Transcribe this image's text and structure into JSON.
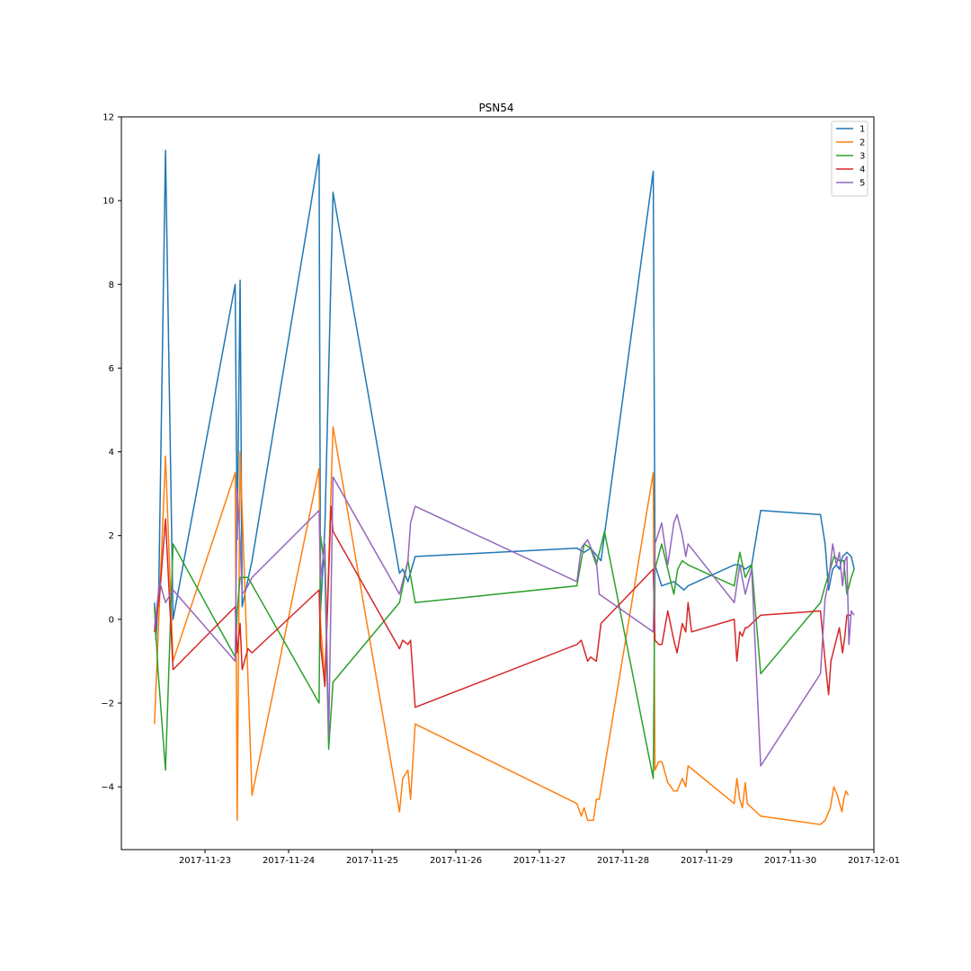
{
  "chart_data": {
    "type": "line",
    "title": "PSN54",
    "xlabel": "",
    "ylabel": "",
    "x_axis": "date",
    "xlim": [
      "2017-11-22T00:00",
      "2017-12-01T00:00"
    ],
    "ylim": [
      -5.5,
      12
    ],
    "x_ticks": [
      "2017-11-23",
      "2017-11-24",
      "2017-11-25",
      "2017-11-26",
      "2017-11-27",
      "2017-11-28",
      "2017-11-29",
      "2017-11-30",
      "2017-12-01"
    ],
    "y_ticks": [
      -4,
      -2,
      0,
      2,
      4,
      6,
      8,
      10,
      12
    ],
    "legend_position": "top-right",
    "grid": false,
    "series": [
      {
        "name": "1",
        "color": "#1f77b4",
        "points": [
          [
            "2017-11-22 09:30",
            0.4
          ],
          [
            "2017-11-22 09:55",
            -0.5
          ],
          [
            "2017-11-22 10:45",
            0.8
          ],
          [
            "2017-11-22 12:40",
            11.2
          ],
          [
            "2017-11-22 14:50",
            0.0
          ],
          [
            "2017-11-23 08:40",
            8.0
          ],
          [
            "2017-11-23 09:15",
            1.9
          ],
          [
            "2017-11-23 10:05",
            8.1
          ],
          [
            "2017-11-23 10:40",
            0.3
          ],
          [
            "2017-11-23 13:30",
            1.4
          ],
          [
            "2017-11-24 08:45",
            11.1
          ],
          [
            "2017-11-24 09:10",
            0.2
          ],
          [
            "2017-11-24 10:25",
            2.2
          ],
          [
            "2017-11-24 12:45",
            10.2
          ],
          [
            "2017-11-25 07:50",
            1.1
          ],
          [
            "2017-11-25 08:45",
            1.2
          ],
          [
            "2017-11-25 10:15",
            0.9
          ],
          [
            "2017-11-25 12:20",
            1.5
          ],
          [
            "2017-11-27 10:45",
            1.7
          ],
          [
            "2017-11-27 12:50",
            1.6
          ],
          [
            "2017-11-27 14:40",
            1.7
          ],
          [
            "2017-11-27 17:40",
            1.4
          ],
          [
            "2017-11-28 08:40",
            10.7
          ],
          [
            "2017-11-28 09:10",
            1.3
          ],
          [
            "2017-11-28 11:05",
            0.8
          ],
          [
            "2017-11-28 14:35",
            0.9
          ],
          [
            "2017-11-28 17:30",
            0.7
          ],
          [
            "2017-11-28 18:40",
            0.8
          ],
          [
            "2017-11-29 07:55",
            1.3
          ],
          [
            "2017-11-29 09:30",
            1.3
          ],
          [
            "2017-11-29 11:05",
            1.2
          ],
          [
            "2017-11-29 12:55",
            1.3
          ],
          [
            "2017-11-29 15:30",
            2.6
          ],
          [
            "2017-11-30 08:40",
            2.5
          ],
          [
            "2017-11-30 10:00",
            1.8
          ],
          [
            "2017-11-30 11:00",
            0.7
          ],
          [
            "2017-11-30 12:10",
            1.2
          ],
          [
            "2017-11-30 13:15",
            1.3
          ],
          [
            "2017-11-30 14:05",
            1.2
          ],
          [
            "2017-11-30 15:00",
            1.5
          ],
          [
            "2017-11-30 16:15",
            1.6
          ],
          [
            "2017-11-30 17:30",
            1.5
          ],
          [
            "2017-11-30 18:20",
            1.2
          ]
        ]
      },
      {
        "name": "2",
        "color": "#ff7f0e",
        "points": [
          [
            "2017-11-22 09:30",
            -2.5
          ],
          [
            "2017-11-22 12:40",
            3.9
          ],
          [
            "2017-11-22 14:50",
            -1.0
          ],
          [
            "2017-11-23 08:40",
            3.5
          ],
          [
            "2017-11-23 09:15",
            -4.8
          ],
          [
            "2017-11-23 10:05",
            4.0
          ],
          [
            "2017-11-23 13:30",
            -4.2
          ],
          [
            "2017-11-24 08:45",
            3.6
          ],
          [
            "2017-11-24 09:10",
            -0.1
          ],
          [
            "2017-11-24 10:25",
            -1.5
          ],
          [
            "2017-11-24 12:45",
            4.6
          ],
          [
            "2017-11-25 07:50",
            -4.6
          ],
          [
            "2017-11-25 08:45",
            -3.8
          ],
          [
            "2017-11-25 10:15",
            -3.6
          ],
          [
            "2017-11-25 11:00",
            -4.3
          ],
          [
            "2017-11-25 12:20",
            -2.5
          ],
          [
            "2017-11-27 10:45",
            -4.4
          ],
          [
            "2017-11-27 12:00",
            -4.7
          ],
          [
            "2017-11-27 12:50",
            -4.5
          ],
          [
            "2017-11-27 13:50",
            -4.8
          ],
          [
            "2017-11-27 15:30",
            -4.8
          ],
          [
            "2017-11-27 16:20",
            -4.3
          ],
          [
            "2017-11-27 17:10",
            -4.3
          ],
          [
            "2017-11-28 08:40",
            3.5
          ],
          [
            "2017-11-28 09:10",
            -3.6
          ],
          [
            "2017-11-28 10:15",
            -3.4
          ],
          [
            "2017-11-28 11:10",
            -3.4
          ],
          [
            "2017-11-28 12:50",
            -3.9
          ],
          [
            "2017-11-28 14:35",
            -4.1
          ],
          [
            "2017-11-28 15:30",
            -4.1
          ],
          [
            "2017-11-28 17:00",
            -3.8
          ],
          [
            "2017-11-28 18:00",
            -4.0
          ],
          [
            "2017-11-28 18:40",
            -3.5
          ],
          [
            "2017-11-29 07:55",
            -4.4
          ],
          [
            "2017-11-29 08:40",
            -3.8
          ],
          [
            "2017-11-29 09:30",
            -4.3
          ],
          [
            "2017-11-29 10:15",
            -4.5
          ],
          [
            "2017-11-29 11:05",
            -3.9
          ],
          [
            "2017-11-29 11:40",
            -4.4
          ],
          [
            "2017-11-29 15:30",
            -4.7
          ],
          [
            "2017-11-30 08:40",
            -4.9
          ],
          [
            "2017-11-30 10:00",
            -4.8
          ],
          [
            "2017-11-30 11:30",
            -4.5
          ],
          [
            "2017-11-30 12:30",
            -4.0
          ],
          [
            "2017-11-30 13:30",
            -4.2
          ],
          [
            "2017-11-30 14:50",
            -4.6
          ],
          [
            "2017-11-30 15:20",
            -4.3
          ],
          [
            "2017-11-30 16:00",
            -4.1
          ],
          [
            "2017-11-30 16:40",
            -4.2
          ]
        ]
      },
      {
        "name": "3",
        "color": "#2ca02c",
        "points": [
          [
            "2017-11-22 09:30",
            0.3
          ],
          [
            "2017-11-22 10:30",
            -1.2
          ],
          [
            "2017-11-22 12:40",
            -3.6
          ],
          [
            "2017-11-22 14:50",
            1.8
          ],
          [
            "2017-11-23 08:40",
            -0.9
          ],
          [
            "2017-11-23 09:15",
            0.2
          ],
          [
            "2017-11-23 10:05",
            1.0
          ],
          [
            "2017-11-23 11:30",
            1.0
          ],
          [
            "2017-11-23 12:20",
            1.0
          ],
          [
            "2017-11-24 08:45",
            -2.0
          ],
          [
            "2017-11-24 09:10",
            2.0
          ],
          [
            "2017-11-24 10:25",
            1.2
          ],
          [
            "2017-11-24 11:30",
            -3.1
          ],
          [
            "2017-11-24 12:45",
            -1.5
          ],
          [
            "2017-11-25 07:50",
            0.4
          ],
          [
            "2017-11-25 10:15",
            1.4
          ],
          [
            "2017-11-25 12:20",
            0.4
          ],
          [
            "2017-11-27 10:45",
            0.8
          ],
          [
            "2017-11-27 12:50",
            1.8
          ],
          [
            "2017-11-27 14:40",
            1.7
          ],
          [
            "2017-11-27 16:20",
            1.3
          ],
          [
            "2017-11-27 18:40",
            2.1
          ],
          [
            "2017-11-28 08:40",
            -3.8
          ],
          [
            "2017-11-28 09:10",
            1.2
          ],
          [
            "2017-11-28 11:05",
            1.8
          ],
          [
            "2017-11-28 14:35",
            0.6
          ],
          [
            "2017-11-28 15:40",
            1.2
          ],
          [
            "2017-11-28 17:00",
            1.4
          ],
          [
            "2017-11-28 18:40",
            1.3
          ],
          [
            "2017-11-29 07:55",
            0.8
          ],
          [
            "2017-11-29 09:30",
            1.6
          ],
          [
            "2017-11-29 11:05",
            1.0
          ],
          [
            "2017-11-29 12:55",
            1.3
          ],
          [
            "2017-11-29 15:30",
            -1.3
          ],
          [
            "2017-11-30 08:40",
            0.4
          ],
          [
            "2017-11-30 10:00",
            0.8
          ],
          [
            "2017-11-30 11:30",
            1.2
          ],
          [
            "2017-11-30 12:30",
            1.5
          ],
          [
            "2017-11-30 14:05",
            1.4
          ],
          [
            "2017-11-30 15:20",
            1.4
          ],
          [
            "2017-11-30 16:15",
            0.6
          ],
          [
            "2017-11-30 17:30",
            1.0
          ],
          [
            "2017-11-30 18:20",
            1.2
          ]
        ]
      },
      {
        "name": "4",
        "color": "#d62728",
        "points": [
          [
            "2017-11-22 09:30",
            -0.3
          ],
          [
            "2017-11-22 11:00",
            0.6
          ],
          [
            "2017-11-22 12:40",
            2.4
          ],
          [
            "2017-11-22 14:50",
            -1.2
          ],
          [
            "2017-11-23 08:40",
            0.3
          ],
          [
            "2017-11-23 09:15",
            -0.8
          ],
          [
            "2017-11-23 10:05",
            -0.1
          ],
          [
            "2017-11-23 10:40",
            -1.2
          ],
          [
            "2017-11-23 12:20",
            -0.7
          ],
          [
            "2017-11-23 13:30",
            -0.8
          ],
          [
            "2017-11-24 08:45",
            0.7
          ],
          [
            "2017-11-24 09:10",
            -0.6
          ],
          [
            "2017-11-24 10:25",
            -1.6
          ],
          [
            "2017-11-24 12:10",
            2.7
          ],
          [
            "2017-11-24 12:45",
            2.1
          ],
          [
            "2017-11-25 07:50",
            -0.7
          ],
          [
            "2017-11-25 08:45",
            -0.5
          ],
          [
            "2017-11-25 10:15",
            -0.6
          ],
          [
            "2017-11-25 11:00",
            -0.5
          ],
          [
            "2017-11-25 12:20",
            -2.1
          ],
          [
            "2017-11-27 10:45",
            -0.6
          ],
          [
            "2017-11-27 12:00",
            -0.5
          ],
          [
            "2017-11-27 13:50",
            -1.0
          ],
          [
            "2017-11-27 14:40",
            -0.9
          ],
          [
            "2017-11-27 16:20",
            -1.0
          ],
          [
            "2017-11-27 17:40",
            -0.1
          ],
          [
            "2017-11-28 08:40",
            1.2
          ],
          [
            "2017-11-28 09:10",
            -0.5
          ],
          [
            "2017-11-28 10:15",
            -0.6
          ],
          [
            "2017-11-28 11:10",
            -0.6
          ],
          [
            "2017-11-28 12:50",
            0.2
          ],
          [
            "2017-11-28 14:35",
            -0.5
          ],
          [
            "2017-11-28 15:30",
            -0.8
          ],
          [
            "2017-11-28 17:00",
            -0.1
          ],
          [
            "2017-11-28 18:00",
            -0.3
          ],
          [
            "2017-11-28 18:40",
            0.4
          ],
          [
            "2017-11-28 19:40",
            -0.3
          ],
          [
            "2017-11-29 07:55",
            0.0
          ],
          [
            "2017-11-29 08:40",
            -1.0
          ],
          [
            "2017-11-29 09:30",
            -0.3
          ],
          [
            "2017-11-29 10:15",
            -0.4
          ],
          [
            "2017-11-29 11:05",
            -0.2
          ],
          [
            "2017-11-29 11:40",
            -0.2
          ],
          [
            "2017-11-29 15:30",
            0.1
          ],
          [
            "2017-11-30 08:40",
            0.2
          ],
          [
            "2017-11-30 10:00",
            -1.0
          ],
          [
            "2017-11-30 11:00",
            -1.8
          ],
          [
            "2017-11-30 11:40",
            -1.0
          ],
          [
            "2017-11-30 14:05",
            -0.2
          ],
          [
            "2017-11-30 15:00",
            -0.8
          ],
          [
            "2017-11-30 15:40",
            -0.4
          ],
          [
            "2017-11-30 16:15",
            0.1
          ],
          [
            "2017-11-30 17:30",
            0.1
          ]
        ]
      },
      {
        "name": "5",
        "color": "#9467bd",
        "points": [
          [
            "2017-11-22 09:30",
            -0.2
          ],
          [
            "2017-11-22 11:00",
            0.9
          ],
          [
            "2017-11-22 12:40",
            0.4
          ],
          [
            "2017-11-22 14:50",
            0.7
          ],
          [
            "2017-11-23 08:40",
            -1.0
          ],
          [
            "2017-11-23 09:15",
            3.1
          ],
          [
            "2017-11-23 10:05",
            1.9
          ],
          [
            "2017-11-23 10:40",
            0.6
          ],
          [
            "2017-11-23 12:20",
            0.8
          ],
          [
            "2017-11-23 13:30",
            1.0
          ],
          [
            "2017-11-24 08:45",
            2.6
          ],
          [
            "2017-11-24 09:10",
            1.0
          ],
          [
            "2017-11-24 10:25",
            1.8
          ],
          [
            "2017-11-24 11:30",
            -2.8
          ],
          [
            "2017-11-24 12:45",
            3.4
          ],
          [
            "2017-11-25 07:50",
            0.6
          ],
          [
            "2017-11-25 10:15",
            1.4
          ],
          [
            "2017-11-25 11:00",
            2.3
          ],
          [
            "2017-11-25 12:20",
            2.7
          ],
          [
            "2017-11-27 10:45",
            0.9
          ],
          [
            "2017-11-27 12:00",
            1.7
          ],
          [
            "2017-11-27 12:50",
            1.8
          ],
          [
            "2017-11-27 13:50",
            1.9
          ],
          [
            "2017-11-27 16:20",
            1.4
          ],
          [
            "2017-11-27 17:10",
            0.6
          ],
          [
            "2017-11-28 08:40",
            -0.3
          ],
          [
            "2017-11-28 09:10",
            1.8
          ],
          [
            "2017-11-28 11:05",
            2.3
          ],
          [
            "2017-11-28 12:50",
            1.3
          ],
          [
            "2017-11-28 14:35",
            2.3
          ],
          [
            "2017-11-28 15:30",
            2.5
          ],
          [
            "2017-11-28 17:00",
            2.0
          ],
          [
            "2017-11-28 18:00",
            1.5
          ],
          [
            "2017-11-28 18:40",
            1.8
          ],
          [
            "2017-11-29 07:55",
            0.4
          ],
          [
            "2017-11-29 09:30",
            1.3
          ],
          [
            "2017-11-29 11:05",
            0.6
          ],
          [
            "2017-11-29 12:55",
            1.2
          ],
          [
            "2017-11-29 15:30",
            -3.5
          ],
          [
            "2017-11-30 08:40",
            -1.3
          ],
          [
            "2017-11-30 10:00",
            0.5
          ],
          [
            "2017-11-30 11:00",
            0.9
          ],
          [
            "2017-11-30 12:10",
            1.8
          ],
          [
            "2017-11-30 13:15",
            1.3
          ],
          [
            "2017-11-30 14:05",
            1.6
          ],
          [
            "2017-11-30 15:00",
            0.8
          ],
          [
            "2017-11-30 15:40",
            1.4
          ],
          [
            "2017-11-30 16:15",
            1.5
          ],
          [
            "2017-11-30 16:50",
            -0.6
          ],
          [
            "2017-11-30 17:30",
            0.2
          ],
          [
            "2017-11-30 18:20",
            0.1
          ]
        ]
      }
    ]
  }
}
